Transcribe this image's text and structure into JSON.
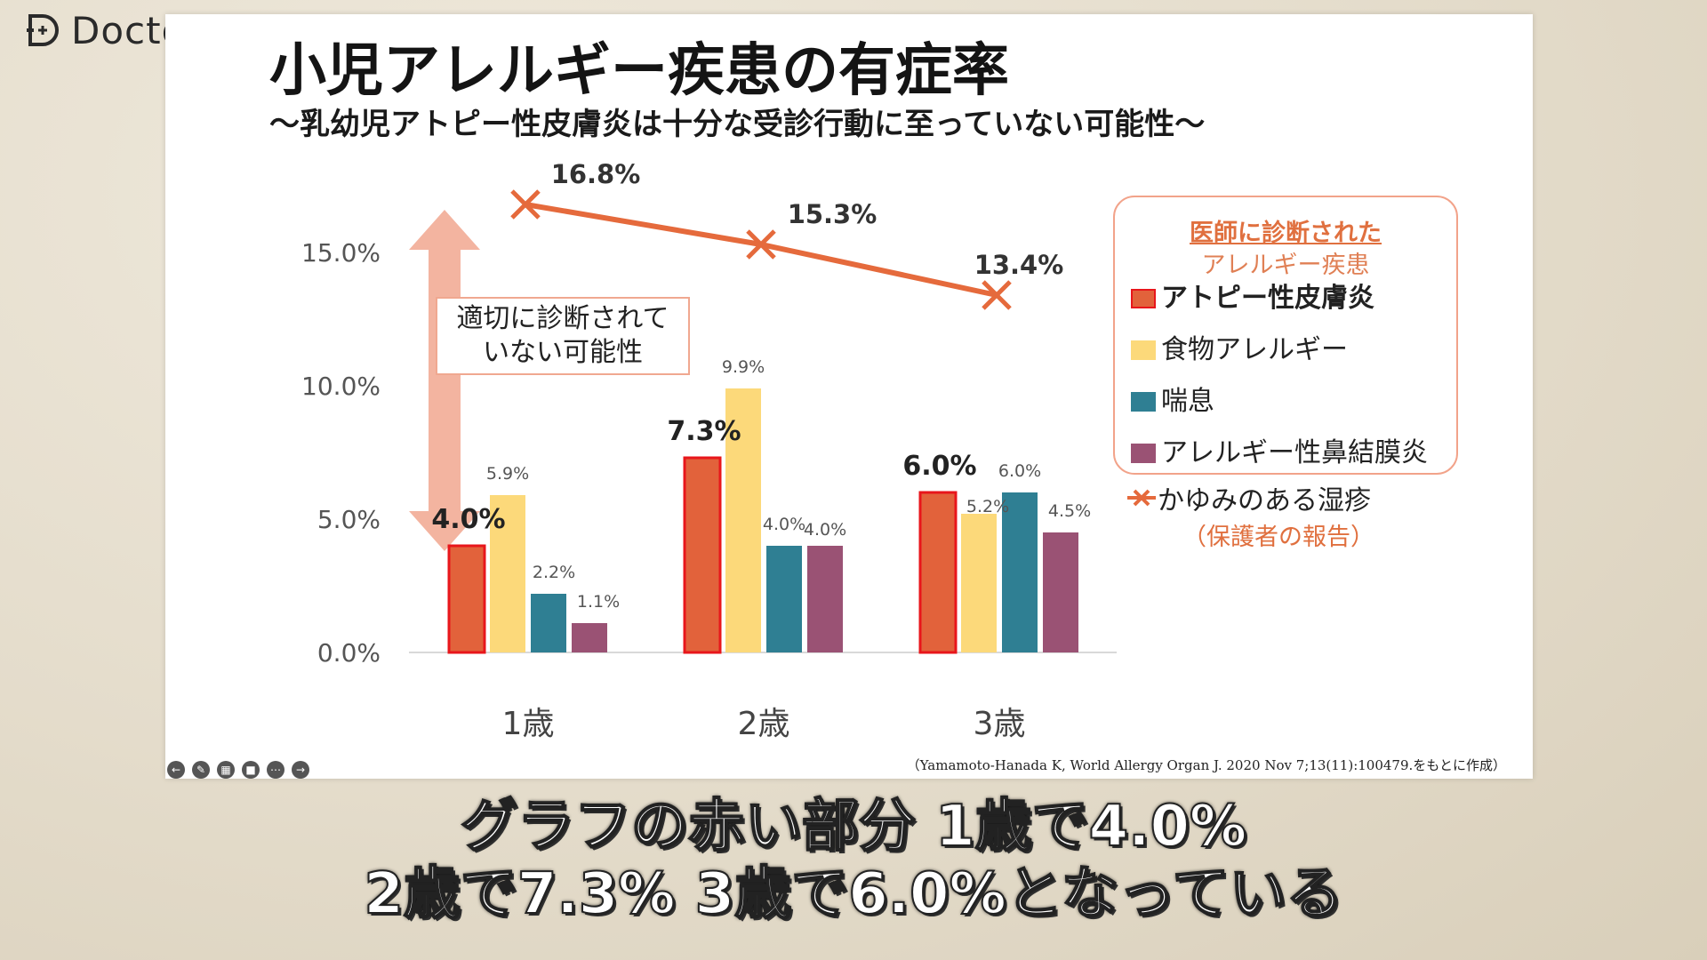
{
  "brand": {
    "name": "Doctorbook"
  },
  "slide": {
    "title": "小児アレルギー疾患の有症率",
    "subtitle": "〜乳幼児アトピー性皮膚炎は十分な受診行動に至っていない可能性〜",
    "callout": [
      "適切に診断されて",
      "いない可能性"
    ],
    "legend": {
      "heading1": "医師に診断された",
      "heading2": "アレルギー疾患",
      "line_label": "かゆみのある湿疹",
      "line_sub": "（保護者の報告）"
    },
    "citation": "（Yamamoto-Hanada K, World Allergy Organ J. 2020 Nov 7;13(11):100479.をもとに作成）"
  },
  "caption": {
    "line1": "グラフの赤い部分 1歳で4.0%",
    "line2": "2歳で7.3% 3歳で6.0%となっている"
  },
  "colors": {
    "atopy": "#e2623b",
    "atopy_border": "#e8161b",
    "food": "#fcd97a",
    "asthma": "#2f7f93",
    "rhinitis": "#9a5274",
    "line": "#e56a3c",
    "arrow": "#f3b4a0"
  },
  "chart_data": {
    "type": "bar",
    "categories": [
      "1歳",
      "2歳",
      "3歳"
    ],
    "ylim": [
      0,
      18
    ],
    "yticks": [
      0,
      5,
      10,
      15
    ],
    "ytick_labels": [
      "0.0%",
      "5.0%",
      "10.0%",
      "15.0%"
    ],
    "series": [
      {
        "name": "アトピー性皮膚炎",
        "values": [
          4.0,
          7.3,
          6.0
        ],
        "labels": [
          "4.0%",
          "7.3%",
          "6.0%"
        ]
      },
      {
        "name": "食物アレルギー",
        "values": [
          5.9,
          9.9,
          5.2
        ],
        "labels": [
          "5.9%",
          "9.9%",
          "5.2%"
        ]
      },
      {
        "name": "喘息",
        "values": [
          2.2,
          4.0,
          6.0
        ],
        "labels": [
          "2.2%",
          "4.0%",
          "6.0%"
        ]
      },
      {
        "name": "アレルギー性鼻結膜炎",
        "values": [
          1.1,
          4.0,
          4.5
        ],
        "labels": [
          "1.1%",
          "4.0%",
          "4.5%"
        ]
      }
    ],
    "line_series": {
      "name": "かゆみのある湿疹",
      "values": [
        16.8,
        15.3,
        13.4
      ],
      "labels": [
        "16.8%",
        "15.3%",
        "13.4%"
      ]
    }
  }
}
